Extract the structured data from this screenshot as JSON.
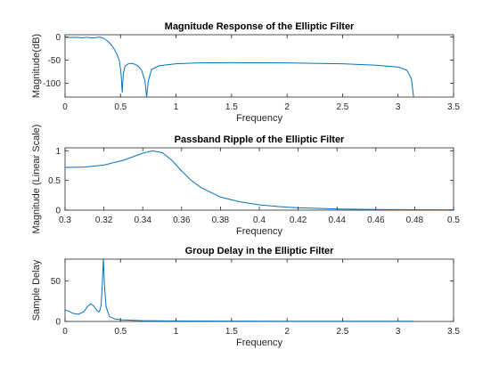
{
  "chart_data": [
    {
      "type": "line",
      "title": "Magnitude Response of the Elliptic Filter",
      "xlabel": "Frequency",
      "ylabel": "Magnitude(dB)",
      "xlim": [
        0,
        3.5
      ],
      "ylim": [
        -130,
        5
      ],
      "xticks": [
        0,
        0.5,
        1,
        1.5,
        2,
        2.5,
        3,
        3.5
      ],
      "xtick_labels": [
        "0",
        "0.5",
        "1",
        "1.5",
        "2",
        "2.5",
        "3",
        "3.5"
      ],
      "yticks": [
        0,
        -50,
        -100
      ],
      "ytick_labels": [
        "0",
        "-50",
        "-100"
      ],
      "grid": false,
      "series": [
        {
          "color": "#0072BD",
          "points": [
            [
              0,
              0
            ],
            [
              0.05,
              -1
            ],
            [
              0.1,
              -0.5
            ],
            [
              0.15,
              -1.5
            ],
            [
              0.2,
              -0.5
            ],
            [
              0.25,
              -2
            ],
            [
              0.3,
              -0.3
            ],
            [
              0.33,
              -1
            ],
            [
              0.35,
              -3
            ],
            [
              0.38,
              -8
            ],
            [
              0.41,
              -15
            ],
            [
              0.44,
              -25
            ],
            [
              0.47,
              -38
            ],
            [
              0.49,
              -52
            ],
            [
              0.505,
              -80
            ],
            [
              0.515,
              -120
            ],
            [
              0.525,
              -80
            ],
            [
              0.54,
              -63
            ],
            [
              0.57,
              -58
            ],
            [
              0.6,
              -57
            ],
            [
              0.63,
              -59
            ],
            [
              0.66,
              -63
            ],
            [
              0.69,
              -72
            ],
            [
              0.72,
              -95
            ],
            [
              0.735,
              -130
            ],
            [
              0.75,
              -95
            ],
            [
              0.78,
              -70
            ],
            [
              0.85,
              -62
            ],
            [
              1.0,
              -58
            ],
            [
              1.2,
              -56
            ],
            [
              1.5,
              -55.5
            ],
            [
              2.0,
              -56
            ],
            [
              2.5,
              -58
            ],
            [
              2.8,
              -61
            ],
            [
              3.0,
              -65
            ],
            [
              3.08,
              -72
            ],
            [
              3.12,
              -90
            ],
            [
              3.14,
              -130
            ]
          ]
        }
      ]
    },
    {
      "type": "line",
      "title": "Passband Ripple of the Elliptic Filter",
      "xlabel": "Frequency",
      "ylabel": "Magnitude (Linear Scale)",
      "xlim": [
        0.3,
        0.5
      ],
      "ylim": [
        0,
        1.05
      ],
      "xticks": [
        0.3,
        0.32,
        0.34,
        0.36,
        0.38,
        0.4,
        0.42,
        0.44,
        0.46,
        0.48,
        0.5
      ],
      "xtick_labels": [
        "0.3",
        "0.32",
        "0.34",
        "0.36",
        "0.38",
        "0.4",
        "0.42",
        "0.44",
        "0.46",
        "0.48",
        "0.5"
      ],
      "yticks": [
        0,
        0.5,
        1
      ],
      "ytick_labels": [
        "0",
        "0.5",
        "1"
      ],
      "grid": false,
      "series": [
        {
          "color": "#0072BD",
          "points": [
            [
              0.3,
              0.72
            ],
            [
              0.31,
              0.725
            ],
            [
              0.32,
              0.76
            ],
            [
              0.33,
              0.84
            ],
            [
              0.34,
              0.96
            ],
            [
              0.345,
              1.0
            ],
            [
              0.35,
              0.97
            ],
            [
              0.355,
              0.84
            ],
            [
              0.36,
              0.66
            ],
            [
              0.365,
              0.5
            ],
            [
              0.37,
              0.38
            ],
            [
              0.38,
              0.22
            ],
            [
              0.39,
              0.14
            ],
            [
              0.4,
              0.09
            ],
            [
              0.41,
              0.06
            ],
            [
              0.42,
              0.04
            ],
            [
              0.44,
              0.02
            ],
            [
              0.46,
              0.012
            ],
            [
              0.48,
              0.008
            ],
            [
              0.5,
              0.005
            ]
          ]
        }
      ]
    },
    {
      "type": "line",
      "title": "Group Delay in the Elliptic Filter",
      "xlabel": "Frequency",
      "ylabel": "Sample Delay",
      "xlim": [
        0,
        3.5
      ],
      "ylim": [
        0,
        77
      ],
      "xticks": [
        0,
        0.5,
        1,
        1.5,
        2,
        2.5,
        3,
        3.5
      ],
      "xtick_labels": [
        "0",
        "0.5",
        "1",
        "1.5",
        "2",
        "2.5",
        "3",
        "3.5"
      ],
      "yticks": [
        0,
        50
      ],
      "ytick_labels": [
        "0",
        "50"
      ],
      "grid": false,
      "series": [
        {
          "color": "#0072BD",
          "points": [
            [
              0,
              14
            ],
            [
              0.03,
              13
            ],
            [
              0.07,
              10
            ],
            [
              0.12,
              9
            ],
            [
              0.17,
              12
            ],
            [
              0.2,
              18
            ],
            [
              0.23,
              22
            ],
            [
              0.26,
              19
            ],
            [
              0.29,
              13
            ],
            [
              0.31,
              12
            ],
            [
              0.325,
              20
            ],
            [
              0.335,
              45
            ],
            [
              0.345,
              78
            ],
            [
              0.355,
              45
            ],
            [
              0.37,
              18
            ],
            [
              0.4,
              6
            ],
            [
              0.45,
              3
            ],
            [
              0.5,
              2
            ],
            [
              0.7,
              1
            ],
            [
              1.0,
              0.6
            ],
            [
              2.0,
              0.3
            ],
            [
              3.0,
              0.3
            ],
            [
              3.14,
              0.3
            ]
          ]
        }
      ]
    }
  ]
}
